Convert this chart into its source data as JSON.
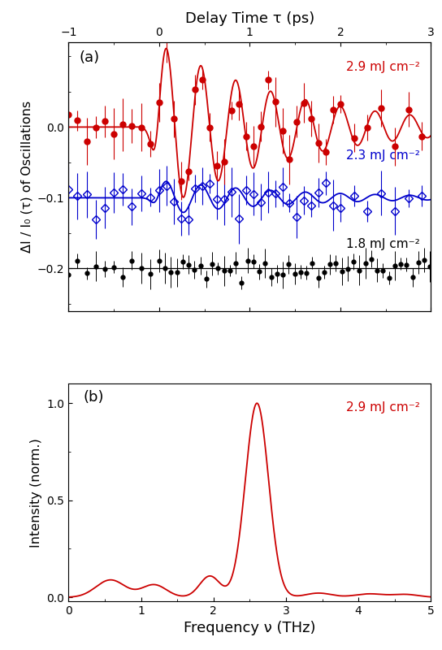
{
  "fig_width": 5.44,
  "fig_height": 8.0,
  "dpi": 100,
  "panel_a": {
    "xlabel_top": "Delay Time τ (ps)",
    "ylabel": "ΔI / I₀ (τ) of Oscillations",
    "xlim": [
      -1,
      3
    ],
    "ylim": [
      -0.26,
      0.12
    ],
    "xticks": [
      -1,
      0,
      1,
      2,
      3
    ],
    "yticks": [
      0.0,
      -0.1,
      -0.2
    ],
    "label": "(a)",
    "red_label": "2.9 mJ cm⁻²",
    "blue_label": "2.3 mJ cm⁻²",
    "black_label": "1.8 mJ cm⁻²",
    "red_color": "#cc0000",
    "blue_color": "#0000cc",
    "black_color": "#000000"
  },
  "panel_b": {
    "xlabel": "Frequency ν (THz)",
    "ylabel": "Intensity (norm.)",
    "xlim": [
      0,
      5
    ],
    "ylim": [
      -0.02,
      1.1
    ],
    "xticks": [
      0,
      1,
      2,
      3,
      4,
      5
    ],
    "yticks": [
      0.0,
      0.5,
      1.0
    ],
    "label": "(b)",
    "red_label": "2.9 mJ cm⁻²",
    "red_color": "#cc0000"
  }
}
